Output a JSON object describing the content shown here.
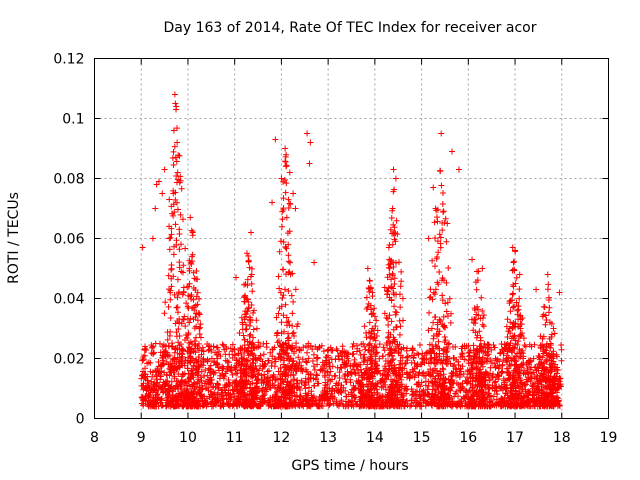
{
  "chart_data": {
    "type": "scatter",
    "marker": "+",
    "title": "Day 163 of 2014, Rate Of TEC Index for receiver acor",
    "xlabel": "GPS time / hours",
    "ylabel": "ROTI / TECUs",
    "xlim": [
      8,
      19
    ],
    "ylim": [
      0,
      0.12
    ],
    "xticks": [
      8,
      9,
      10,
      11,
      12,
      13,
      14,
      15,
      16,
      17,
      18,
      19
    ],
    "yticks": [
      0,
      0.02,
      0.04,
      0.06,
      0.08,
      0.1,
      0.12
    ],
    "xtick_labels": [
      "8",
      "9",
      "10",
      "11",
      "12",
      "13",
      "14",
      "15",
      "16",
      "17",
      "18",
      "19"
    ],
    "ytick_labels": [
      "0",
      "0.02",
      "0.04",
      "0.06",
      "0.08",
      "0.1",
      "0.12"
    ],
    "grid": true,
    "color": "#ff0000",
    "series": [
      {
        "name": "ROTI",
        "data_range_hours": [
          9.0,
          18.0
        ],
        "notable_points": [
          [
            9.72,
            0.108
          ],
          [
            9.73,
            0.105
          ],
          [
            9.75,
            0.104
          ],
          [
            9.7,
            0.096
          ],
          [
            9.74,
            0.087
          ],
          [
            9.5,
            0.083
          ],
          [
            9.45,
            0.075
          ],
          [
            9.33,
            0.078
          ],
          [
            9.38,
            0.079
          ],
          [
            9.3,
            0.07
          ],
          [
            9.6,
            0.073
          ],
          [
            9.78,
            0.082
          ],
          [
            9.03,
            0.057
          ],
          [
            9.25,
            0.06
          ],
          [
            10.05,
            0.067
          ],
          [
            10.1,
            0.062
          ],
          [
            11.35,
            0.062
          ],
          [
            11.03,
            0.047
          ],
          [
            11.87,
            0.093
          ],
          [
            12.0,
            0.08
          ],
          [
            12.08,
            0.09
          ],
          [
            11.8,
            0.072
          ],
          [
            12.18,
            0.082
          ],
          [
            12.55,
            0.095
          ],
          [
            12.62,
            0.092
          ],
          [
            12.6,
            0.085
          ],
          [
            12.7,
            0.052
          ],
          [
            12.25,
            0.075
          ],
          [
            12.3,
            0.07
          ],
          [
            13.85,
            0.05
          ],
          [
            14.4,
            0.083
          ],
          [
            14.45,
            0.08
          ],
          [
            14.38,
            0.07
          ],
          [
            14.3,
            0.057
          ],
          [
            14.6,
            0.04
          ],
          [
            15.42,
            0.095
          ],
          [
            15.25,
            0.077
          ],
          [
            15.3,
            0.07
          ],
          [
            15.15,
            0.06
          ],
          [
            15.55,
            0.065
          ],
          [
            15.65,
            0.089
          ],
          [
            15.8,
            0.083
          ],
          [
            16.08,
            0.053
          ],
          [
            16.3,
            0.05
          ],
          [
            16.95,
            0.057
          ],
          [
            17.0,
            0.056
          ],
          [
            17.1,
            0.048
          ],
          [
            17.45,
            0.043
          ],
          [
            17.7,
            0.048
          ],
          [
            17.95,
            0.042
          ]
        ],
        "activity_peaks": [
          {
            "t": 9.75,
            "peak": 0.108
          },
          {
            "t": 10.1,
            "peak": 0.067
          },
          {
            "t": 11.3,
            "peak": 0.062
          },
          {
            "t": 12.1,
            "peak": 0.095
          },
          {
            "t": 13.9,
            "peak": 0.05
          },
          {
            "t": 14.4,
            "peak": 0.083
          },
          {
            "t": 15.4,
            "peak": 0.095
          },
          {
            "t": 16.2,
            "peak": 0.053
          },
          {
            "t": 17.0,
            "peak": 0.057
          },
          {
            "t": 17.7,
            "peak": 0.048
          }
        ],
        "background_level": [
          0.004,
          0.025
        ]
      }
    ]
  }
}
